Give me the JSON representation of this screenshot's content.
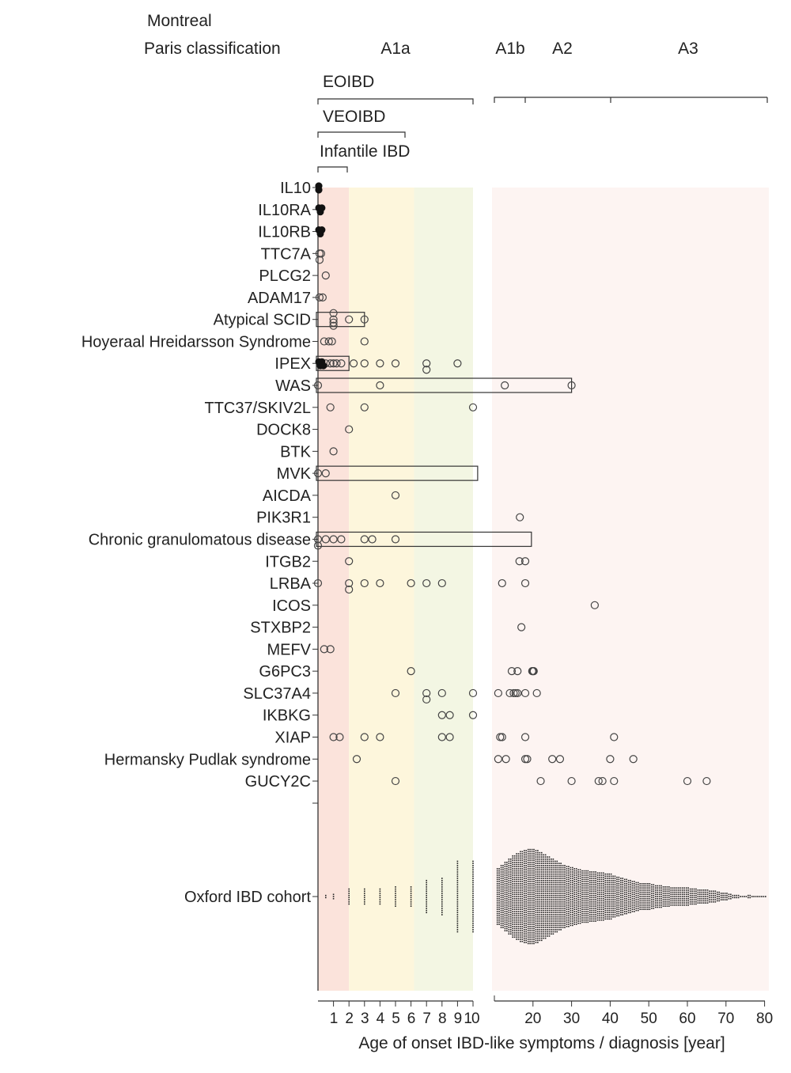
{
  "header": {
    "montreal": "Montreal",
    "paris": "Paris classification",
    "groups": [
      {
        "label": "A1a",
        "range": [
          0,
          10
        ]
      },
      {
        "label": "A1b",
        "range": [
          10,
          17
        ]
      },
      {
        "label": "A2",
        "range": [
          17,
          40
        ]
      },
      {
        "label": "A3",
        "range": [
          40,
          80
        ]
      }
    ],
    "brackets": [
      {
        "label": "EOIBD",
        "range": [
          0,
          10
        ]
      },
      {
        "label": "VEOIBD",
        "range": [
          0,
          6
        ]
      },
      {
        "label": "Infantile IBD",
        "range": [
          0,
          2
        ]
      }
    ]
  },
  "chart_data": {
    "type": "scatter",
    "xlabel": "Age of onset IBD-like symptoms / diagnosis [year]",
    "x_ticks_left": [
      "1",
      "2",
      "3",
      "4",
      "5",
      "6",
      "7",
      "8",
      "9",
      "10"
    ],
    "x_ticks_right": [
      "20",
      "30",
      "40",
      "50",
      "60",
      "70",
      "80"
    ],
    "xlim_left": [
      0,
      10
    ],
    "xlim_right": [
      10,
      80
    ],
    "bands": [
      {
        "range": [
          0,
          2
        ],
        "color": "#fbe3db"
      },
      {
        "range": [
          2,
          6.2
        ],
        "color": "#fdf6dc"
      },
      {
        "range": [
          6.2,
          10
        ],
        "color": "#f3f6e3"
      },
      {
        "range": [
          10,
          80
        ],
        "color": "#fdf4f2"
      }
    ],
    "series": [
      {
        "name": "IL10",
        "filled": [
          0,
          0,
          0,
          0
        ],
        "open": []
      },
      {
        "name": "IL10RA",
        "filled": [
          0,
          0.1,
          0.2
        ],
        "open": []
      },
      {
        "name": "IL10RB",
        "filled": [
          0,
          0.1,
          0.2
        ],
        "open": []
      },
      {
        "name": "TTC7A",
        "filled": [],
        "open": [
          0.2,
          0.1,
          0.1
        ]
      },
      {
        "name": "PLCG2",
        "filled": [],
        "open": [
          0.5
        ]
      },
      {
        "name": "ADAM17",
        "filled": [],
        "open": [
          0.3,
          0.1
        ]
      },
      {
        "name": "Atypical SCID",
        "filled": [],
        "open": [
          1,
          1,
          1,
          1,
          2,
          3
        ],
        "box": [
          0,
          3
        ]
      },
      {
        "name": "Hoyeraal Hreidarsson Syndrome",
        "filled": [],
        "open": [
          0.4,
          0.7,
          0.9,
          3
        ]
      },
      {
        "name": "IPEX",
        "filled": [
          0,
          0.1,
          0.2,
          0.3
        ],
        "open": [
          0.5,
          0.8,
          1,
          1.2,
          1.5,
          2.3,
          3,
          4,
          5,
          7,
          7,
          9
        ],
        "box": [
          0,
          2
        ]
      },
      {
        "name": "WAS",
        "filled": [],
        "open": [
          0,
          4,
          12.7,
          30
        ],
        "box": [
          0,
          30
        ]
      },
      {
        "name": "TTC37/SKIV2L",
        "filled": [],
        "open": [
          0.8,
          3,
          10
        ]
      },
      {
        "name": "DOCK8",
        "filled": [],
        "open": [
          2
        ]
      },
      {
        "name": "BTK",
        "filled": [],
        "open": [
          1
        ]
      },
      {
        "name": "MVK",
        "filled": [],
        "open": [
          0,
          0.5
        ],
        "box": [
          0,
          10.3
        ]
      },
      {
        "name": "AICDA",
        "filled": [],
        "open": [
          5
        ]
      },
      {
        "name": "PIK3R1",
        "filled": [],
        "open": [
          16.6
        ]
      },
      {
        "name": "Chronic granulomatous disease",
        "filled": [],
        "open": [
          0,
          0,
          0.5,
          1,
          1.5,
          3,
          3.5,
          5
        ],
        "box": [
          0,
          19.6
        ]
      },
      {
        "name": "ITGB2",
        "filled": [],
        "open": [
          2,
          16.5,
          18
        ]
      },
      {
        "name": "LRBA",
        "filled": [],
        "open": [
          0,
          2,
          2,
          3,
          4,
          6,
          7,
          8,
          12,
          18
        ]
      },
      {
        "name": "ICOS",
        "filled": [],
        "open": [
          36
        ]
      },
      {
        "name": "STXBP2",
        "filled": [],
        "open": [
          17
        ]
      },
      {
        "name": "MEFV",
        "filled": [],
        "open": [
          0.4,
          0.8
        ]
      },
      {
        "name": "G6PC3",
        "filled": [],
        "open": [
          6,
          14.5,
          16,
          19.8,
          20,
          20.2
        ]
      },
      {
        "name": "SLC37A4",
        "filled": [],
        "open": [
          5,
          7,
          7,
          8,
          10,
          11,
          14,
          15,
          15.5,
          16,
          18,
          21
        ]
      },
      {
        "name": "IKBKG",
        "filled": [],
        "open": [
          8,
          8.5,
          10
        ]
      },
      {
        "name": "XIAP",
        "filled": [],
        "open": [
          1,
          1.4,
          3,
          4,
          8,
          8.5,
          11.5,
          12,
          18,
          41
        ]
      },
      {
        "name": "Hermansky Pudlak syndrome",
        "filled": [],
        "open": [
          2.5,
          11,
          13,
          18,
          18.5,
          25,
          27,
          40,
          46
        ]
      },
      {
        "name": "GUCY2C",
        "filled": [],
        "open": [
          5,
          22,
          30,
          37,
          38,
          41,
          60,
          65
        ]
      }
    ],
    "cohort": {
      "name": "Oxford IBD cohort",
      "left_ages": [
        0.5,
        1,
        2,
        3,
        4,
        5,
        6,
        7,
        8,
        9,
        10
      ],
      "left_counts": [
        2,
        3,
        8,
        8,
        8,
        10,
        10,
        16,
        18,
        34,
        34
      ],
      "right_start_age": 11,
      "right_counts": [
        54,
        60,
        66,
        72,
        78,
        82,
        86,
        88,
        90,
        90,
        88,
        84,
        80,
        76,
        72,
        68,
        64,
        60,
        58,
        56,
        54,
        52,
        50,
        50,
        48,
        48,
        46,
        46,
        44,
        44,
        40,
        38,
        36,
        34,
        32,
        30,
        28,
        26,
        26,
        25,
        24,
        22,
        22,
        20,
        20,
        18,
        18,
        17,
        17,
        17,
        16,
        15,
        14,
        14,
        14,
        12,
        12,
        10,
        8,
        8,
        6,
        4,
        4,
        2,
        2,
        4,
        2,
        2,
        2,
        2
      ]
    }
  }
}
